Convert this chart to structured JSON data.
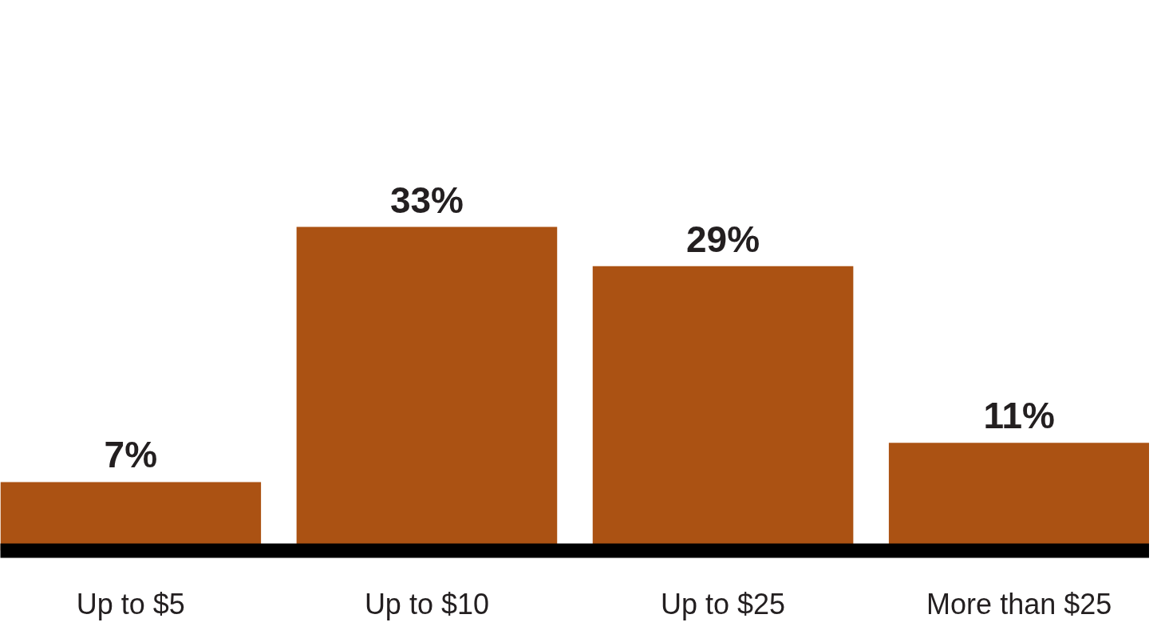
{
  "chart_data": {
    "type": "bar",
    "categories": [
      "Up to $5",
      "Up to $10",
      "Up to $25",
      "More than $25"
    ],
    "values": [
      7,
      33,
      29,
      11
    ],
    "value_labels": [
      "7%",
      "33%",
      "29%",
      "11%"
    ],
    "color": "#ab5213"
  }
}
